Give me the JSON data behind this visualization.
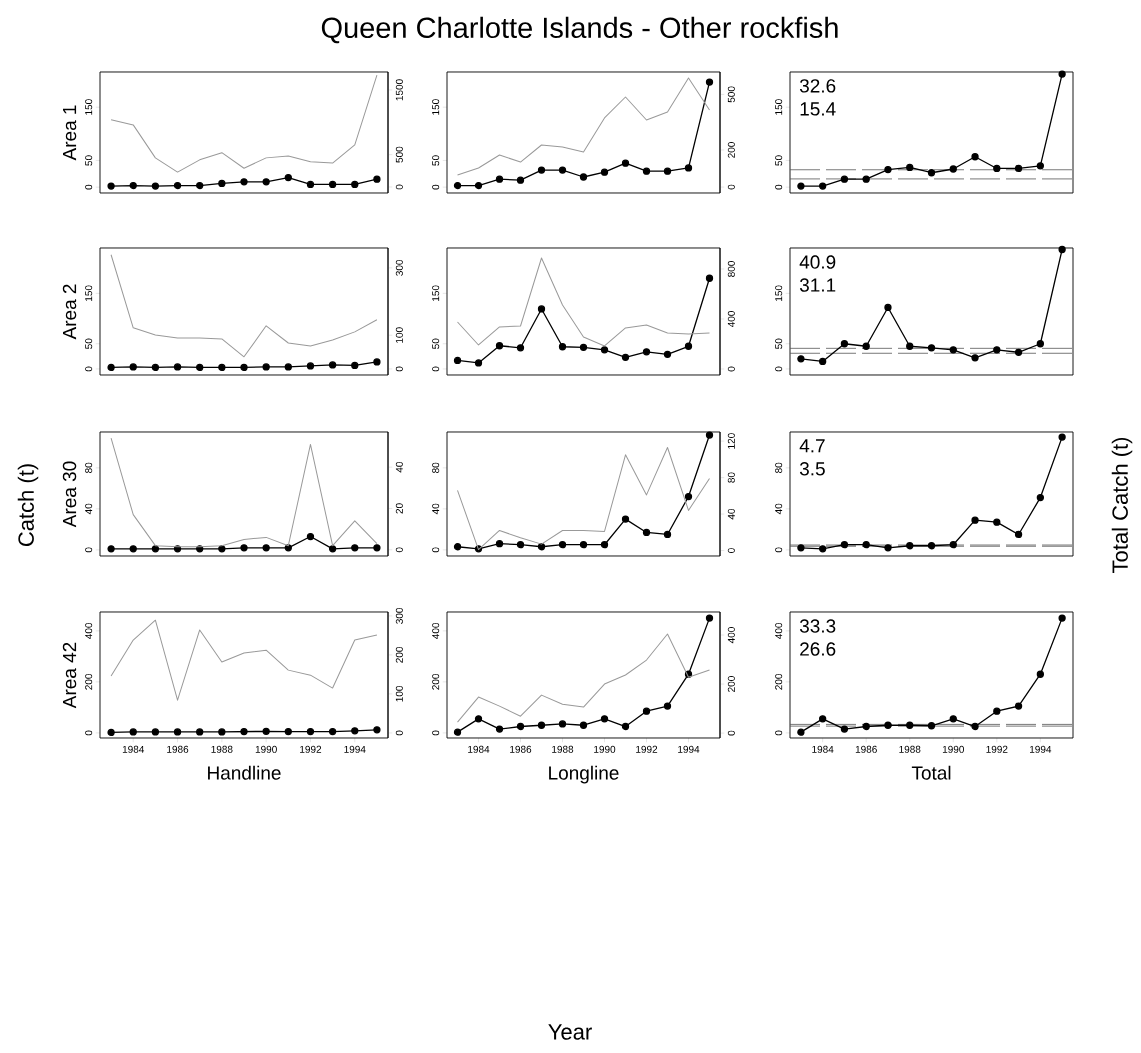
{
  "chart_data": [
    {
      "type": "line",
      "title": "Queen Charlotte Islands  -  Other rockfish",
      "ylabel": "Area  1",
      "annotations": [
        "Catch (t)",
        "Total Catch (t)",
        "Year"
      ],
      "x": [
        1983,
        1984,
        1985,
        1986,
        1987,
        1988,
        1989,
        1990,
        1991,
        1992,
        1993,
        1994,
        1995
      ],
      "xlim": [
        1982.5,
        1995.5
      ],
      "ylim": [
        -11,
        216
      ],
      "yticks": [
        0,
        50,
        150
      ],
      "y2lim": [
        -93,
        1778
      ],
      "y2ticks": [
        0,
        500,
        1500
      ],
      "tick_labels": "y",
      "marker": "circle",
      "series": [
        {
          "color": "#000000",
          "values": [
            2,
            3,
            2,
            3,
            3,
            7,
            10,
            10,
            18,
            5,
            5,
            5,
            15
          ]
        },
        {
          "color": "#999999",
          "axis": "y2",
          "marker": "none",
          "values": [
            1040,
            960,
            450,
            230,
            420,
            530,
            290,
            450,
            480,
            390,
            370,
            650,
            1730
          ]
        }
      ]
    },
    {
      "type": "line",
      "x": [
        1983,
        1984,
        1985,
        1986,
        1987,
        1988,
        1989,
        1990,
        1991,
        1992,
        1993,
        1994,
        1995
      ],
      "xlim": [
        1982.5,
        1995.5
      ],
      "ylim": [
        -11,
        216
      ],
      "yticks": [
        0,
        50,
        150
      ],
      "y2lim": [
        -32,
        621
      ],
      "y2ticks": [
        0,
        200,
        500
      ],
      "tick_labels": "y",
      "marker": "circle",
      "series": [
        {
          "color": "#000000",
          "values": [
            3,
            3,
            15,
            13,
            32,
            32,
            19,
            28,
            45,
            30,
            30,
            36,
            197
          ]
        },
        {
          "color": "#999999",
          "axis": "y2",
          "marker": "none",
          "values": [
            65,
            103,
            173,
            135,
            227,
            216,
            189,
            373,
            486,
            362,
            405,
            589,
            416
          ]
        }
      ]
    },
    {
      "type": "line",
      "annotations": [
        "32.6",
        "15.4"
      ],
      "x": [
        1983,
        1984,
        1985,
        1986,
        1987,
        1988,
        1989,
        1990,
        1991,
        1992,
        1993,
        1994,
        1995
      ],
      "xlim": [
        1982.5,
        1995.5
      ],
      "ylim": [
        -11,
        216
      ],
      "yticks": [
        0,
        50,
        150
      ],
      "tick_labels": "y",
      "marker": "circle",
      "ref_lines": [
        {
          "axis": "y",
          "value": 32.6,
          "color": "#555555",
          "line_style": "dashed"
        },
        {
          "axis": "y",
          "value": 15.4,
          "color": "#555555",
          "line_style": "dashed"
        }
      ],
      "series": [
        {
          "color": "#000000",
          "values": [
            2,
            2,
            15,
            15,
            33,
            37,
            27,
            34,
            57,
            35,
            35,
            40,
            212
          ]
        }
      ]
    },
    {
      "type": "line",
      "ylabel": "Area  2",
      "x": [
        1983,
        1984,
        1985,
        1986,
        1987,
        1988,
        1989,
        1990,
        1991,
        1992,
        1993,
        1994,
        1995
      ],
      "xlim": [
        1982.5,
        1995.5
      ],
      "ylim": [
        -12,
        240
      ],
      "yticks": [
        0,
        50,
        150
      ],
      "y2lim": [
        -18,
        359
      ],
      "y2ticks": [
        0,
        100,
        300
      ],
      "tick_labels": "y",
      "marker": "circle",
      "series": [
        {
          "color": "#000000",
          "values": [
            3,
            4,
            3,
            4,
            3,
            3,
            3,
            4,
            4,
            6,
            8,
            7,
            14
          ]
        },
        {
          "color": "#999999",
          "axis": "y2",
          "marker": "none",
          "values": [
            339,
            122,
            101,
            92,
            92,
            89,
            36,
            128,
            77,
            68,
            86,
            110,
            146
          ]
        }
      ]
    },
    {
      "type": "line",
      "x": [
        1983,
        1984,
        1985,
        1986,
        1987,
        1988,
        1989,
        1990,
        1991,
        1992,
        1993,
        1994,
        1995
      ],
      "xlim": [
        1982.5,
        1995.5
      ],
      "ylim": [
        -12,
        240
      ],
      "yticks": [
        0,
        50,
        150
      ],
      "y2lim": [
        -48,
        968
      ],
      "y2ticks": [
        0,
        400,
        800
      ],
      "tick_labels": "y",
      "marker": "circle",
      "series": [
        {
          "color": "#000000",
          "values": [
            17,
            12,
            46,
            42,
            119,
            44,
            43,
            38,
            23,
            34,
            29,
            45,
            180
          ]
        },
        {
          "color": "#999999",
          "axis": "y2",
          "marker": "none",
          "values": [
            376,
            192,
            336,
            344,
            888,
            512,
            256,
            184,
            328,
            352,
            288,
            280,
            288
          ]
        }
      ]
    },
    {
      "type": "line",
      "annotations": [
        "40.9",
        "31.1"
      ],
      "x": [
        1983,
        1984,
        1985,
        1986,
        1987,
        1988,
        1989,
        1990,
        1991,
        1992,
        1993,
        1994,
        1995
      ],
      "xlim": [
        1982.5,
        1995.5
      ],
      "ylim": [
        -12,
        240
      ],
      "yticks": [
        0,
        50,
        150
      ],
      "tick_labels": "y",
      "marker": "circle",
      "ref_lines": [
        {
          "axis": "y",
          "value": 40.9,
          "color": "#555555",
          "line_style": "dashed"
        },
        {
          "axis": "y",
          "value": 31.1,
          "color": "#555555",
          "line_style": "dashed"
        }
      ],
      "series": [
        {
          "color": "#000000",
          "values": [
            20,
            15,
            50,
            45,
            122,
            45,
            42,
            38,
            22,
            38,
            33,
            50,
            237
          ]
        }
      ]
    },
    {
      "type": "line",
      "ylabel": "Area  30",
      "x": [
        1983,
        1984,
        1985,
        1986,
        1987,
        1988,
        1989,
        1990,
        1991,
        1992,
        1993,
        1994,
        1995
      ],
      "xlim": [
        1982.5,
        1995.5
      ],
      "ylim": [
        -6,
        115
      ],
      "yticks": [
        0,
        40,
        80
      ],
      "y2lim": [
        -3,
        57
      ],
      "y2ticks": [
        0,
        20,
        40
      ],
      "tick_labels": "y",
      "marker": "circle",
      "series": [
        {
          "color": "#000000",
          "values": [
            1,
            1,
            1,
            1,
            1,
            1,
            2,
            2,
            2,
            13,
            1,
            2,
            2
          ]
        },
        {
          "color": "#999999",
          "axis": "y2",
          "marker": "none",
          "values": [
            54,
            17,
            2,
            1.5,
            1.5,
            2,
            5,
            6,
            2,
            51,
            2,
            14,
            3
          ]
        }
      ]
    },
    {
      "type": "line",
      "x": [
        1983,
        1984,
        1985,
        1986,
        1987,
        1988,
        1989,
        1990,
        1991,
        1992,
        1993,
        1994,
        1995
      ],
      "xlim": [
        1982.5,
        1995.5
      ],
      "ylim": [
        -6,
        115
      ],
      "yticks": [
        0,
        40,
        80
      ],
      "y2lim": [
        -6,
        130
      ],
      "y2ticks": [
        0,
        40,
        80,
        120
      ],
      "tick_labels": "y",
      "marker": "circle",
      "series": [
        {
          "color": "#000000",
          "values": [
            3,
            1,
            6,
            5,
            3,
            5,
            5,
            5,
            30,
            17,
            15,
            52,
            112
          ]
        },
        {
          "color": "#999999",
          "axis": "y2",
          "marker": "none",
          "values": [
            66,
            1,
            22,
            14,
            7,
            22,
            22,
            21,
            105,
            61,
            113,
            44,
            79
          ]
        }
      ]
    },
    {
      "type": "line",
      "annotations": [
        "4.7",
        "3.5"
      ],
      "x": [
        1983,
        1984,
        1985,
        1986,
        1987,
        1988,
        1989,
        1990,
        1991,
        1992,
        1993,
        1994,
        1995
      ],
      "xlim": [
        1982.5,
        1995.5
      ],
      "ylim": [
        -6,
        115
      ],
      "yticks": [
        0,
        40,
        80
      ],
      "tick_labels": "y",
      "marker": "circle",
      "ref_lines": [
        {
          "axis": "y",
          "value": 4.7,
          "color": "#555555",
          "line_style": "dashed"
        },
        {
          "axis": "y",
          "value": 3.5,
          "color": "#555555",
          "line_style": "dashed"
        }
      ],
      "series": [
        {
          "color": "#000000",
          "values": [
            2,
            1,
            5,
            5,
            2,
            4,
            4,
            5,
            29,
            27,
            15,
            51,
            110
          ]
        }
      ]
    },
    {
      "type": "line",
      "ylabel": "Area  42",
      "xlabel": "Handline",
      "x": [
        1983,
        1984,
        1985,
        1986,
        1987,
        1988,
        1989,
        1990,
        1991,
        1992,
        1993,
        1994,
        1995
      ],
      "xlim": [
        1982.5,
        1995.5
      ],
      "xticks": [
        1984,
        1986,
        1988,
        1990,
        1992,
        1994
      ],
      "ylim": [
        -20,
        474
      ],
      "yticks": [
        0,
        200,
        400
      ],
      "y2lim": [
        -13,
        310
      ],
      "y2ticks": [
        0,
        100,
        200,
        300
      ],
      "marker": "circle",
      "series": [
        {
          "color": "#000000",
          "values": [
            2,
            4,
            4,
            4,
            4,
            4,
            5,
            6,
            5,
            5,
            5,
            8,
            12
          ]
        },
        {
          "color": "#999999",
          "axis": "y2",
          "marker": "none",
          "values": [
            146,
            238,
            289,
            84,
            264,
            182,
            205,
            212,
            161,
            148,
            115,
            238,
            251
          ]
        }
      ]
    },
    {
      "type": "line",
      "xlabel": "Longline",
      "x": [
        1983,
        1984,
        1985,
        1986,
        1987,
        1988,
        1989,
        1990,
        1991,
        1992,
        1993,
        1994,
        1995
      ],
      "xlim": [
        1982.5,
        1995.5
      ],
      "xticks": [
        1984,
        1986,
        1988,
        1990,
        1992,
        1994
      ],
      "ylim": [
        -20,
        474
      ],
      "yticks": [
        0,
        200,
        400
      ],
      "y2lim": [
        -20,
        494
      ],
      "y2ticks": [
        0,
        200,
        400
      ],
      "marker": "circle",
      "series": [
        {
          "color": "#000000",
          "values": [
            3,
            55,
            15,
            25,
            30,
            35,
            30,
            55,
            25,
            85,
            105,
            230,
            450
          ]
        },
        {
          "color": "#999999",
          "axis": "y2",
          "marker": "none",
          "values": [
            45,
            147,
            110,
            69,
            155,
            118,
            106,
            200,
            237,
            298,
            404,
            228,
            257
          ]
        }
      ]
    },
    {
      "type": "line",
      "xlabel": "Total",
      "annotations": [
        "33.3",
        "26.6"
      ],
      "x": [
        1983,
        1984,
        1985,
        1986,
        1987,
        1988,
        1989,
        1990,
        1991,
        1992,
        1993,
        1994,
        1995
      ],
      "xlim": [
        1982.5,
        1995.5
      ],
      "xticks": [
        1984,
        1986,
        1988,
        1990,
        1992,
        1994
      ],
      "ylim": [
        -20,
        474
      ],
      "yticks": [
        0,
        200,
        400
      ],
      "marker": "circle",
      "ref_lines": [
        {
          "axis": "y",
          "value": 33.3,
          "color": "#555555",
          "line_style": "dashed"
        },
        {
          "axis": "y",
          "value": 26.6,
          "color": "#555555",
          "line_style": "dashed"
        }
      ],
      "series": [
        {
          "color": "#000000",
          "values": [
            3,
            55,
            15,
            25,
            30,
            30,
            28,
            55,
            25,
            85,
            105,
            230,
            450
          ]
        }
      ]
    }
  ]
}
